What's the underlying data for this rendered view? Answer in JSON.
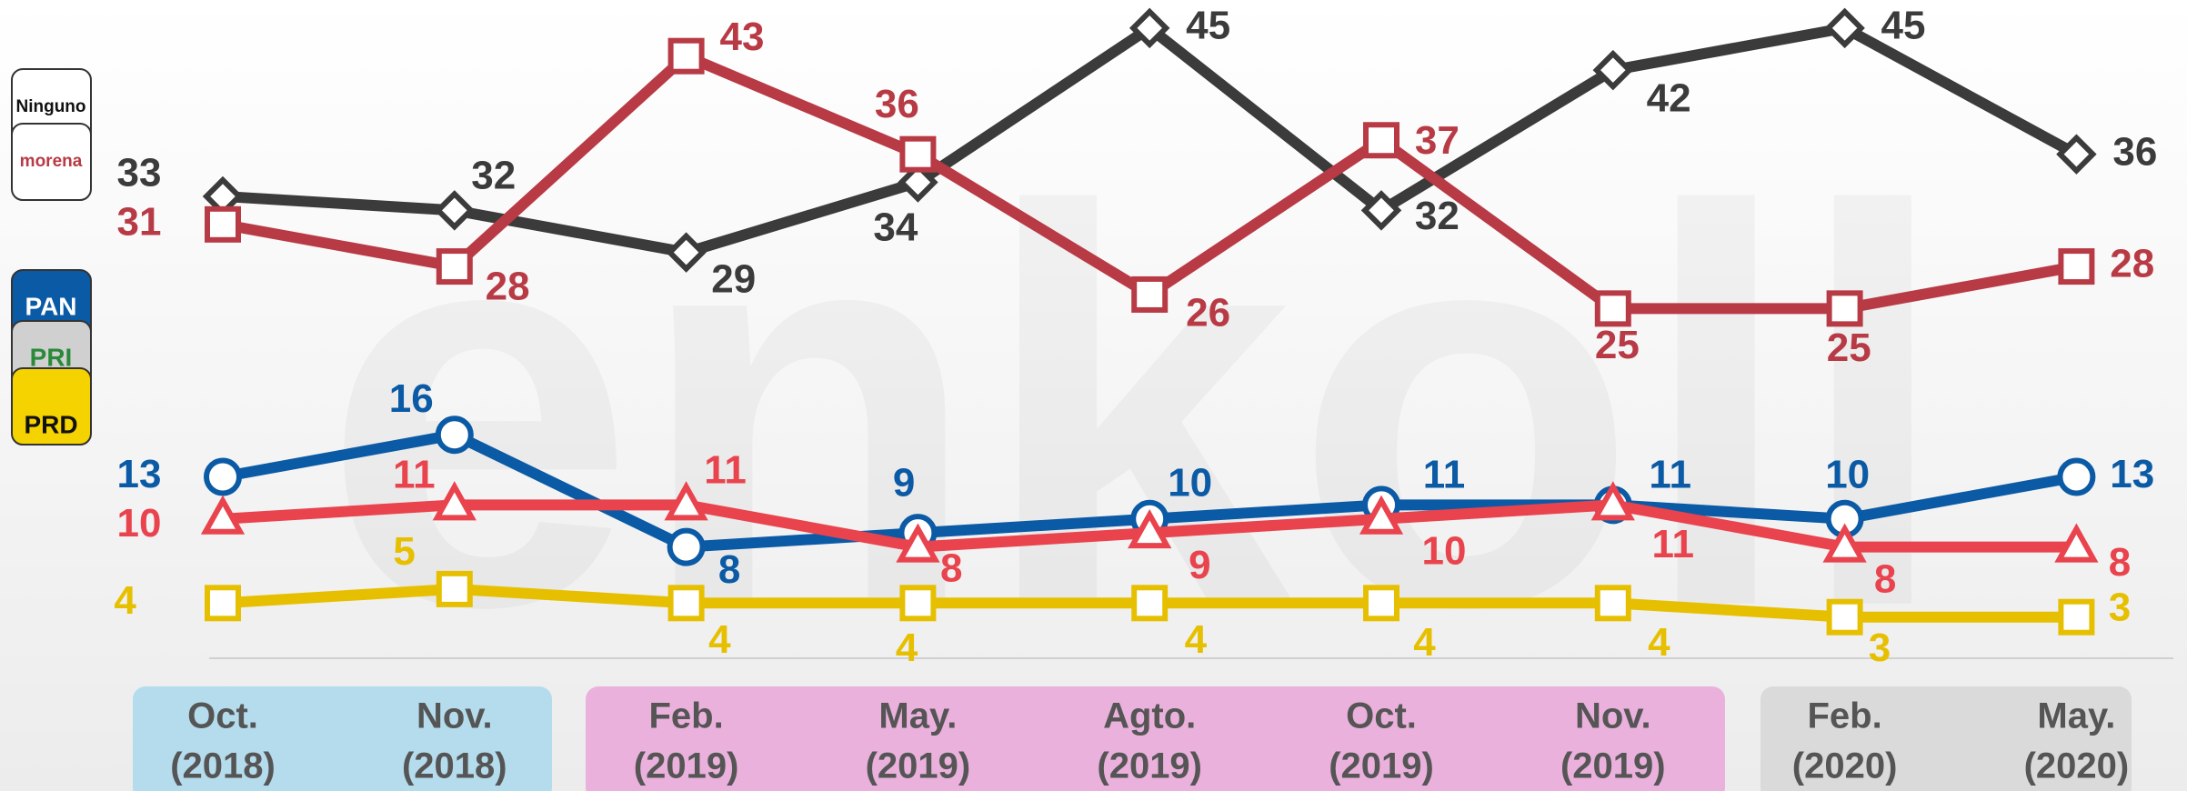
{
  "chart_data": {
    "type": "line",
    "watermark": "enkoll",
    "categories": [
      [
        "Oct.",
        "(2018)"
      ],
      [
        "Nov.",
        "(2018)"
      ],
      [
        "Feb.",
        "(2019)"
      ],
      [
        "May.",
        "(2019)"
      ],
      [
        "Agto.",
        "(2019)"
      ],
      [
        "Oct.",
        "(2019)"
      ],
      [
        "Nov.",
        "(2019)"
      ],
      [
        "Feb.",
        "(2020)"
      ],
      [
        "May.",
        "(2020)"
      ]
    ],
    "ylim": [
      0,
      47
    ],
    "series": [
      {
        "name": "Ninguno",
        "color": "#3b3b3b",
        "marker": "diamond",
        "values": [
          33,
          32,
          29,
          34,
          45,
          32,
          42,
          45,
          36
        ]
      },
      {
        "name": "morena",
        "color": "#b83a45",
        "marker": "square",
        "values": [
          31,
          28,
          43,
          36,
          26,
          37,
          25,
          25,
          28
        ]
      },
      {
        "name": "PAN",
        "color": "#0b5aa5",
        "marker": "circle",
        "values": [
          13,
          16,
          8,
          9,
          10,
          11,
          11,
          10,
          13
        ]
      },
      {
        "name": "PRI",
        "color": "#e9434d",
        "marker": "triangle",
        "values": [
          10,
          11,
          11,
          8,
          9,
          10,
          11,
          8,
          8
        ]
      },
      {
        "name": "PRD",
        "color": "#e6c000",
        "marker": "square",
        "values": [
          4,
          5,
          4,
          4,
          4,
          4,
          4,
          3,
          3
        ]
      }
    ]
  }
}
